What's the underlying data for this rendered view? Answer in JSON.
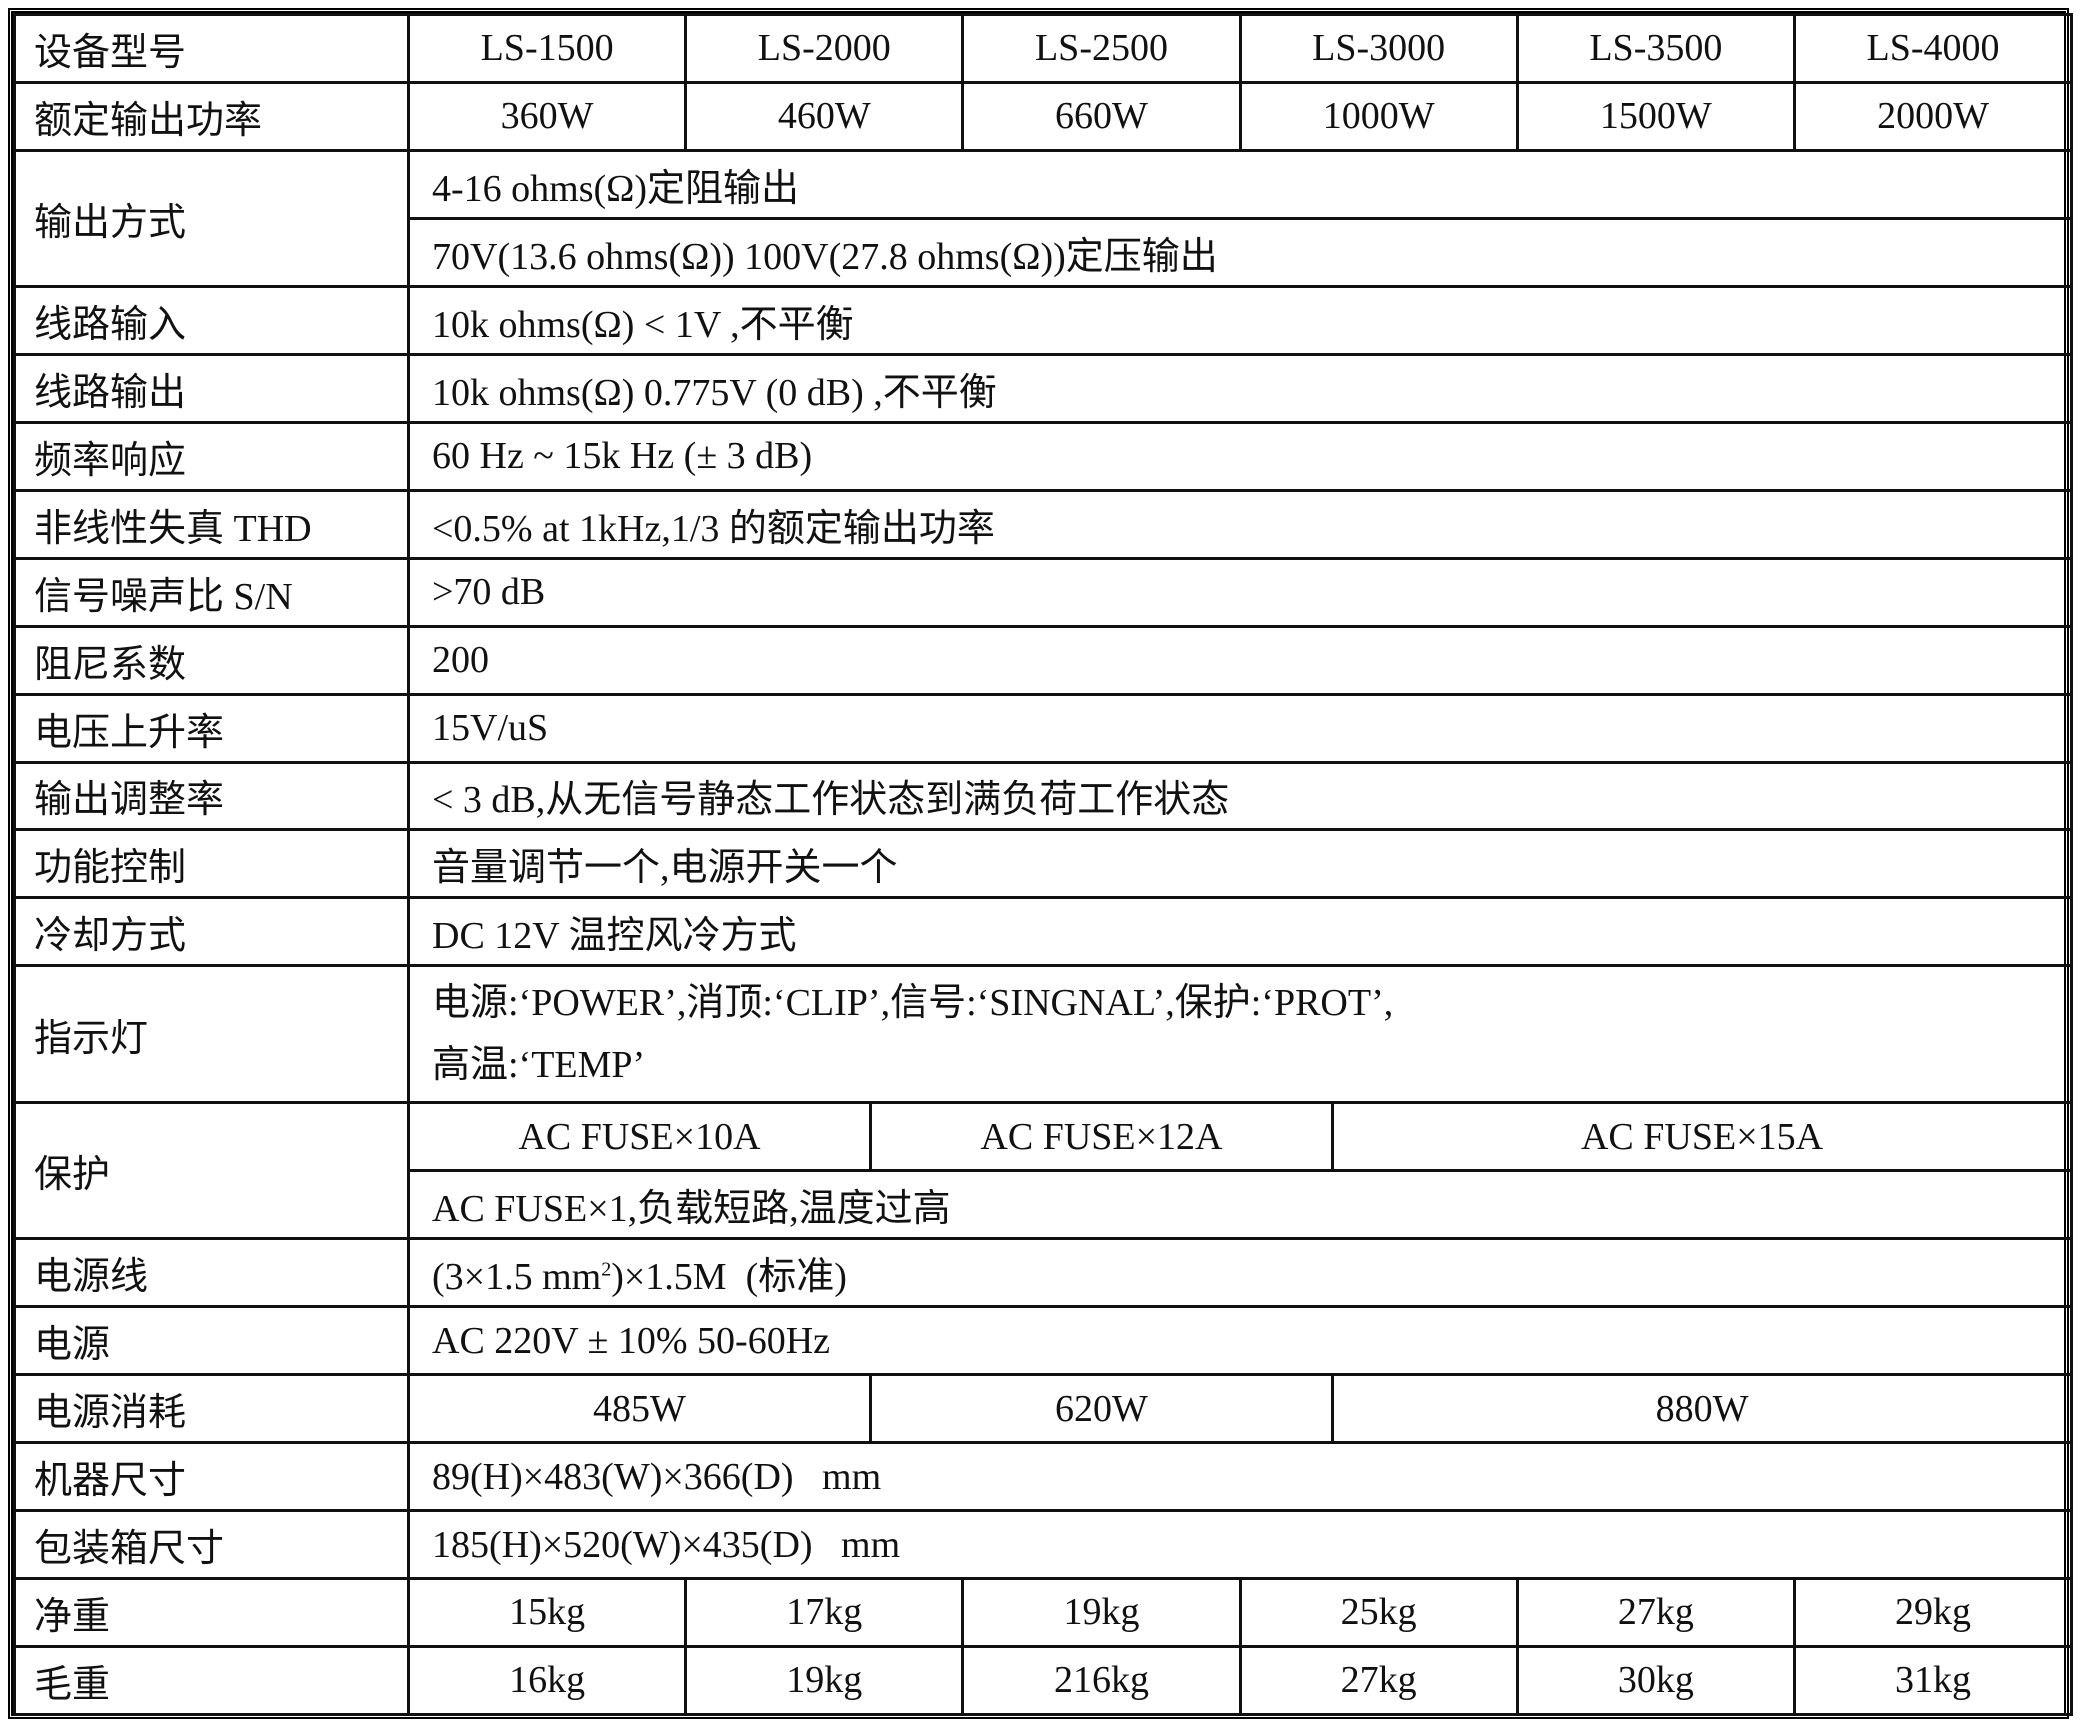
{
  "header": {
    "label": "设备型号",
    "models": [
      "LS-1500",
      "LS-2000",
      "LS-2500",
      "LS-3000",
      "LS-3500",
      "LS-4000"
    ]
  },
  "rated_power": {
    "label": "额定输出功率",
    "values": [
      "360W",
      "460W",
      "660W",
      "1000W",
      "1500W",
      "2000W"
    ]
  },
  "output_mode": {
    "label": "输出方式",
    "line1": "4-16 ohms(Ω)定阻输出",
    "line2": "70V(13.6 ohms(Ω)) 100V(27.8 ohms(Ω))定压输出"
  },
  "rows": [
    {
      "label": "线路输入",
      "value": "10k ohms(Ω) < 1V ,不平衡"
    },
    {
      "label": "线路输出",
      "value": "10k ohms(Ω) 0.775V (0 dB) ,不平衡"
    },
    {
      "label": "频率响应",
      "value": "60 Hz ~ 15k Hz (± 3 dB)"
    },
    {
      "label": "非线性失真 THD",
      "value": "<0.5% at 1kHz,1/3 的额定输出功率"
    },
    {
      "label": "信号噪声比 S/N",
      "value": ">70 dB"
    },
    {
      "label": "阻尼系数",
      "value": "200"
    },
    {
      "label": "电压上升率",
      "value": "15V/uS"
    },
    {
      "label": "输出调整率",
      "value": "< 3 dB,从无信号静态工作状态到满负荷工作状态"
    },
    {
      "label": "功能控制",
      "value": "音量调节一个,电源开关一个"
    },
    {
      "label": "冷却方式",
      "value": "DC 12V 温控风冷方式"
    }
  ],
  "indicator": {
    "label": "指示灯",
    "line1": "电源:‘POWER’,消顶:‘CLIP’,信号:‘SINGNAL’,保护:‘PROT’,",
    "line2": "高温:‘TEMP’"
  },
  "protection": {
    "label": "保护",
    "fuses": [
      "AC FUSE×10A",
      "AC FUSE×12A",
      "AC FUSE×15A"
    ],
    "detail": "AC FUSE×1,负载短路,温度过高"
  },
  "power_cord": {
    "label": "电源线",
    "value_pre": "(3×1.5 mm",
    "sup": "2",
    "value_post": ")×1.5M  (标准)"
  },
  "power_supply": {
    "label": "电源",
    "value": "AC 220V ± 10% 50-60Hz"
  },
  "consumption": {
    "label": "电源消耗",
    "values": [
      "485W",
      "620W",
      "880W"
    ]
  },
  "dimensions": {
    "label": "机器尺寸",
    "value": "89(H)×483(W)×366(D)   mm"
  },
  "package": {
    "label": "包装箱尺寸",
    "value": "185(H)×520(W)×435(D)   mm"
  },
  "net_weight": {
    "label": "净重",
    "values": [
      "15kg",
      "17kg",
      "19kg",
      "25kg",
      "27kg",
      "29kg"
    ]
  },
  "gross_weight": {
    "label": "毛重",
    "values": [
      "16kg",
      "19kg",
      "216kg",
      "27kg",
      "30kg",
      "31kg"
    ]
  }
}
